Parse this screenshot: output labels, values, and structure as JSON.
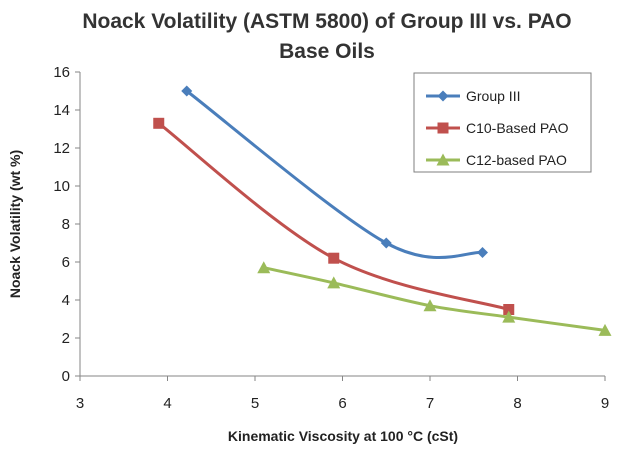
{
  "chart_data": {
    "type": "line",
    "title": "Noack Volatility (ASTM 5800) of Group III vs. PAO",
    "subtitle": "Base Oils",
    "xlabel": "Kinematic Viscosity at 100 °C (cSt)",
    "ylabel": "Noack Volatility (wt %)",
    "xlim": [
      3,
      9
    ],
    "ylim": [
      0,
      16
    ],
    "x_ticks": [
      "3",
      "4",
      "5",
      "6",
      "7",
      "8",
      "9"
    ],
    "y_ticks": [
      "0",
      "2",
      "4",
      "6",
      "8",
      "10",
      "12",
      "14",
      "16"
    ],
    "grid": false,
    "legend_position": "top-right",
    "series": [
      {
        "name": "Group III",
        "color": "#4a7ebb",
        "marker": "diamond",
        "smooth": true,
        "x": [
          4.22,
          6.5,
          7.6
        ],
        "y": [
          15.0,
          7.0,
          6.5
        ]
      },
      {
        "name": "C10-Based PAO",
        "color": "#c0504d",
        "marker": "square",
        "smooth": true,
        "x": [
          3.9,
          5.9,
          7.9
        ],
        "y": [
          13.3,
          6.2,
          3.5
        ]
      },
      {
        "name": "C12-based PAO",
        "color": "#9bbb59",
        "marker": "triangle",
        "smooth": true,
        "x": [
          5.1,
          5.9,
          7.0,
          7.9,
          9.0
        ],
        "y": [
          5.7,
          4.9,
          3.7,
          3.1,
          2.4
        ]
      }
    ]
  }
}
